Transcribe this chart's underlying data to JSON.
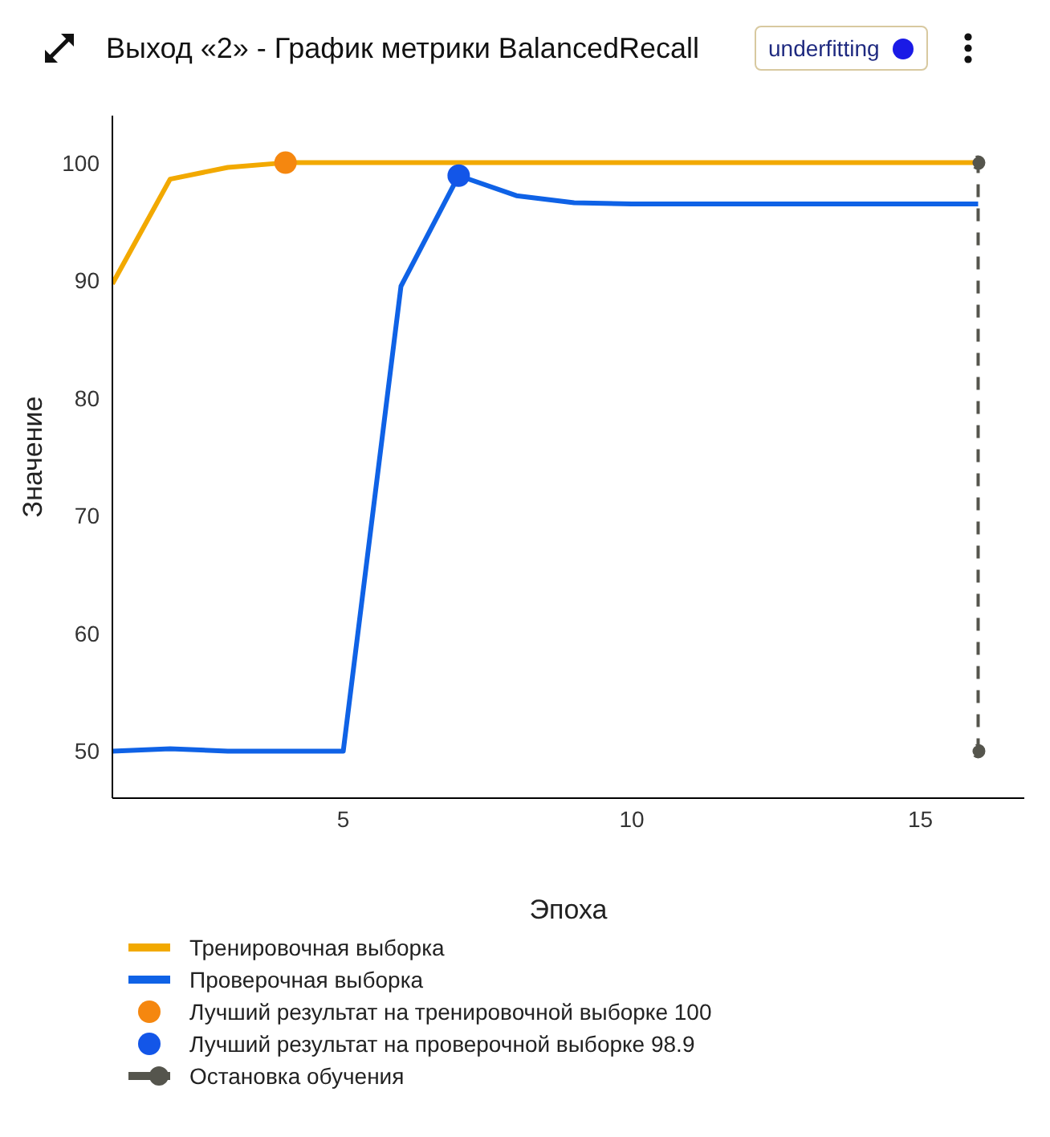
{
  "chart_data": {
    "type": "line",
    "title": "Выход «2» - График метрики BalancedRecall",
    "annotations": [
      "underfitting"
    ],
    "xlabel": "Эпоха",
    "ylabel": "Значение",
    "xlim": [
      1,
      16.8
    ],
    "xticks": [
      5,
      10,
      15
    ],
    "ylim": [
      46,
      104
    ],
    "yticks": [
      50,
      60,
      70,
      80,
      90,
      100
    ],
    "legend": "bottom",
    "series": [
      {
        "name": "Тренировочная выборка",
        "color": "#f2a900",
        "x": [
          1,
          2,
          3,
          4,
          5,
          6,
          7,
          8,
          9,
          10,
          11,
          12,
          13,
          14,
          15,
          16
        ],
        "values": [
          89.7,
          98.6,
          99.6,
          100,
          100,
          100,
          100,
          100,
          100,
          100,
          100,
          100,
          100,
          100,
          100,
          100
        ]
      },
      {
        "name": "Проверочная выборка",
        "color": "#0f62e6",
        "x": [
          1,
          2,
          3,
          4,
          5,
          6,
          7,
          8,
          9,
          10,
          11,
          12,
          13,
          14,
          15,
          16
        ],
        "values": [
          50,
          50.2,
          50,
          50,
          50,
          89.5,
          98.9,
          97.2,
          96.6,
          96.5,
          96.5,
          96.5,
          96.5,
          96.5,
          96.5,
          96.5
        ]
      },
      {
        "name": "Лучший результат на тренировочной выборке 100",
        "type": "scatter",
        "color": "#f5870f",
        "x": [
          4
        ],
        "values": [
          100
        ]
      },
      {
        "name": "Лучший результат на проверочной выборке 98.9",
        "type": "scatter",
        "color": "#1356e8",
        "x": [
          7
        ],
        "values": [
          98.9
        ]
      },
      {
        "name": "Остановка обучения",
        "color": "#55554d",
        "line_style": "dashed",
        "marker": "circle",
        "x": [
          16,
          16
        ],
        "values": [
          50,
          100
        ]
      }
    ]
  }
}
